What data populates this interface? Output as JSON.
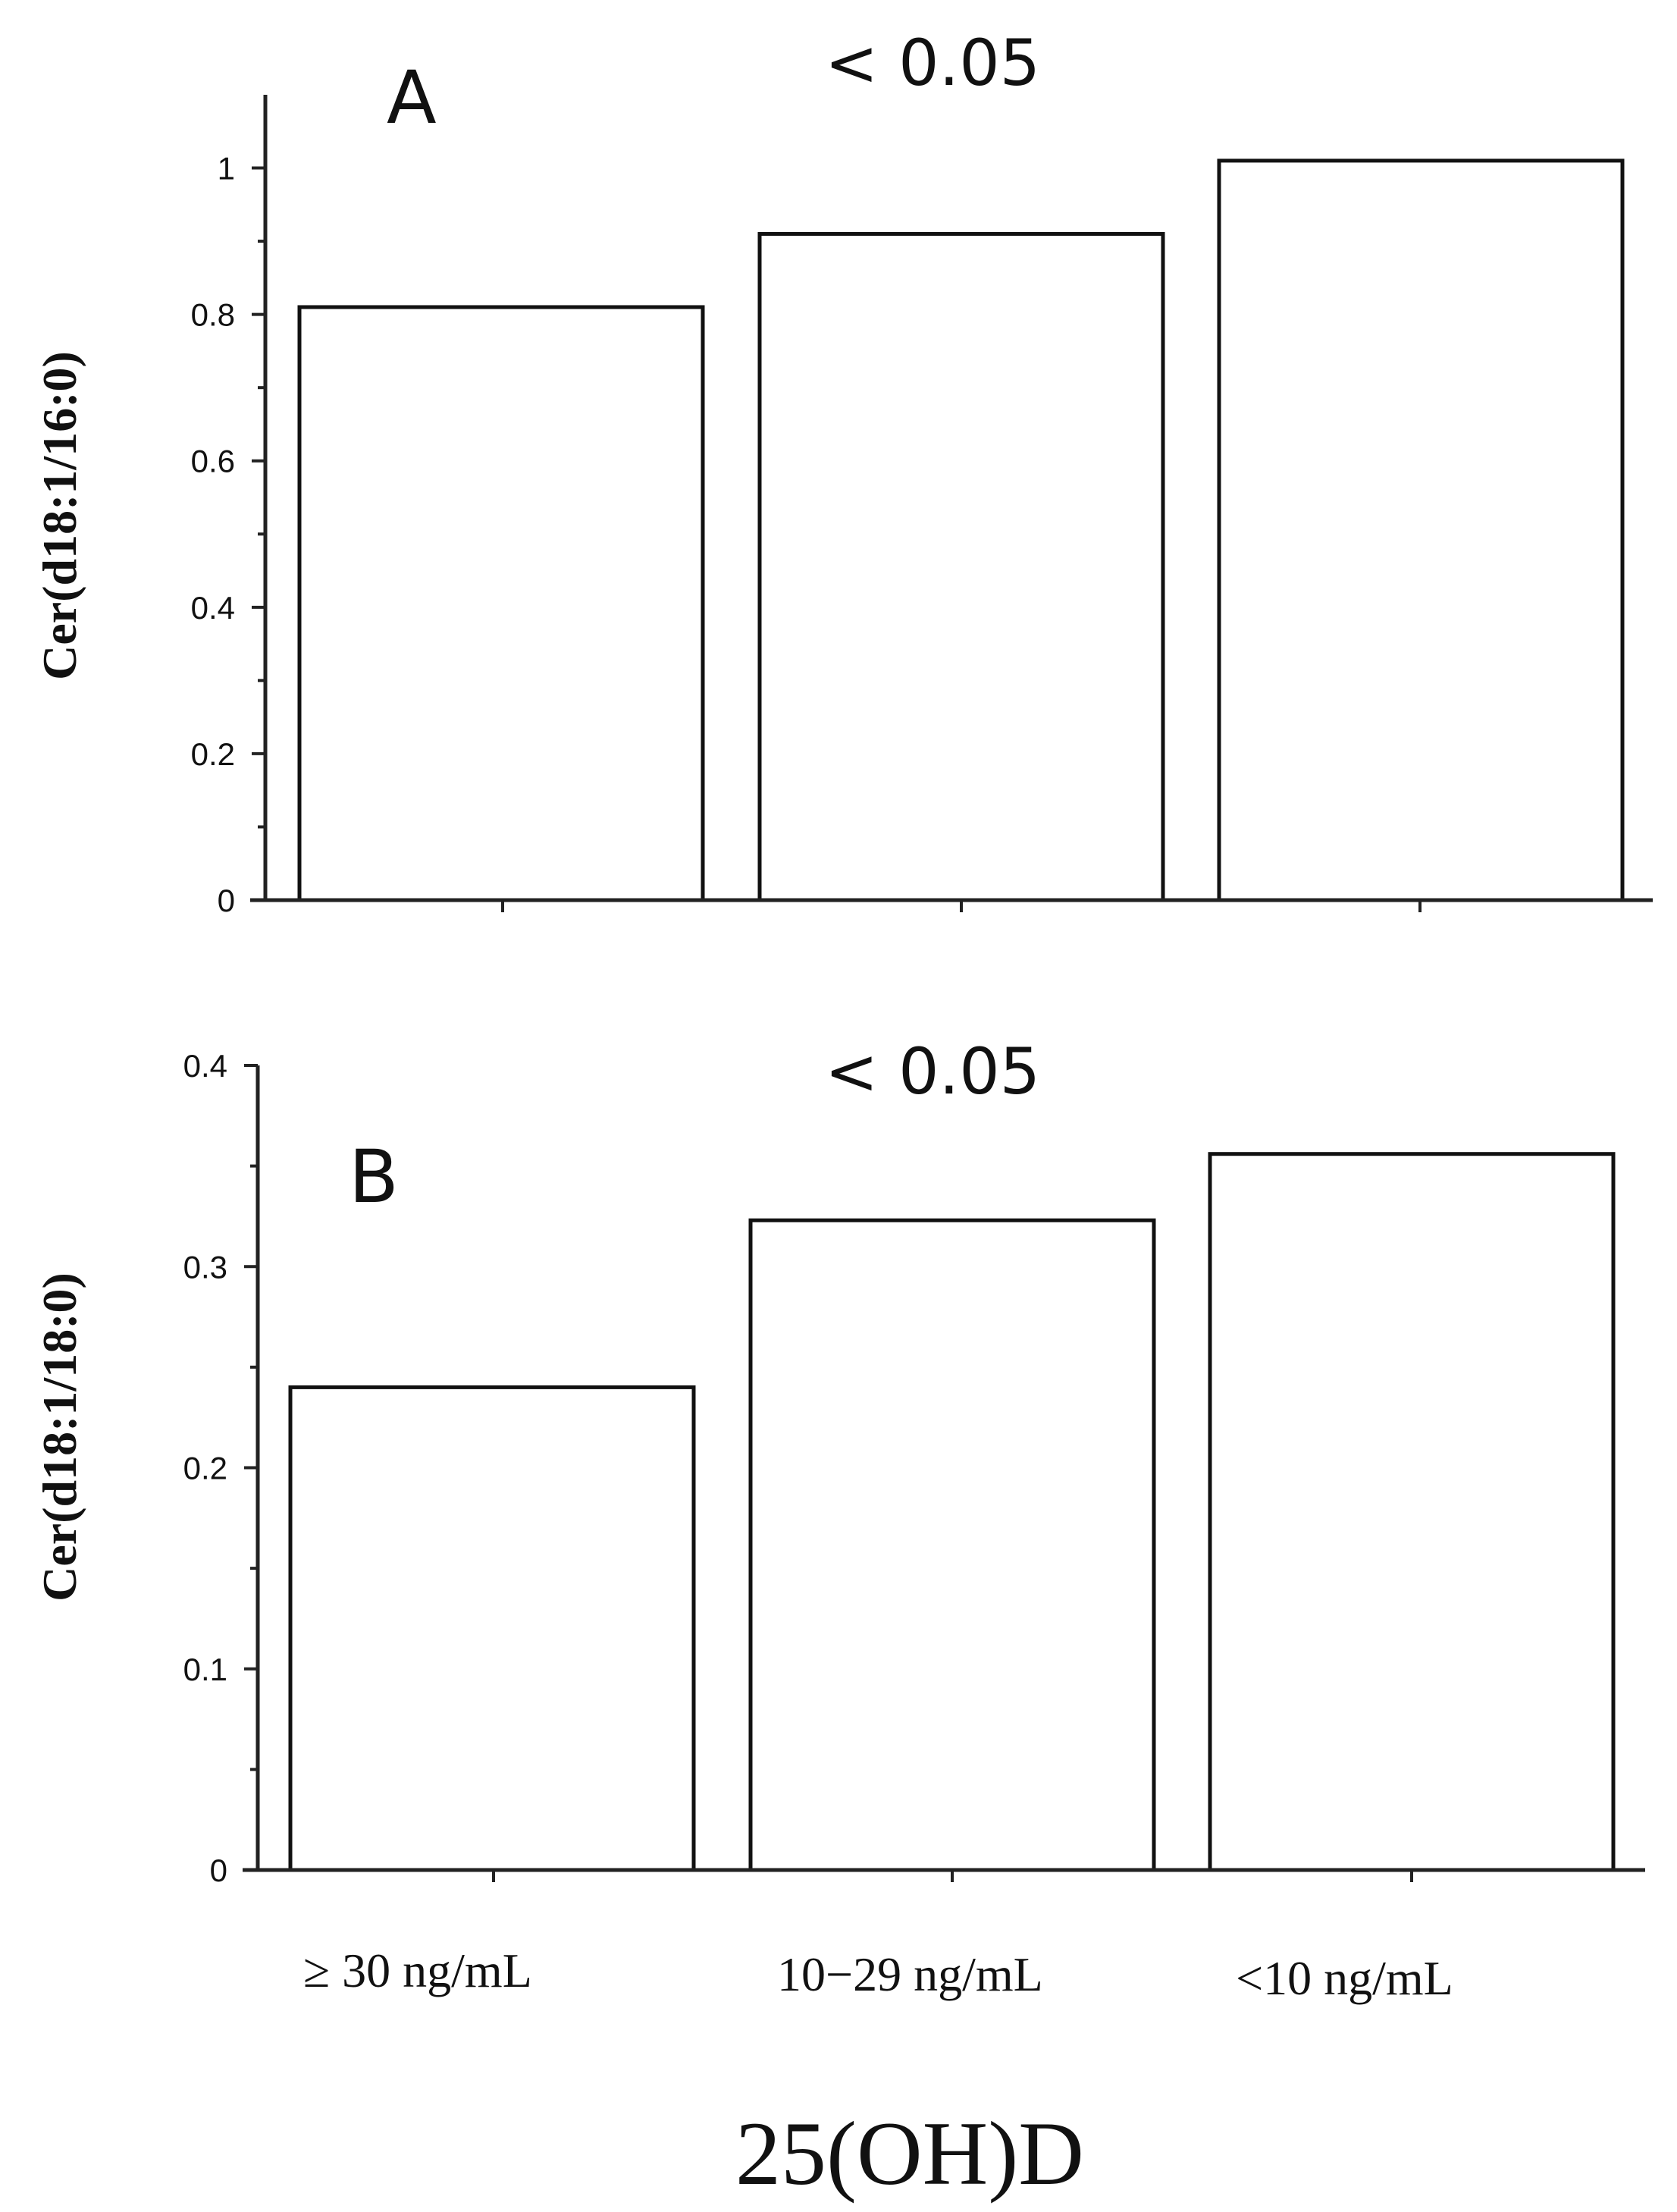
{
  "chart_data": [
    {
      "type": "bar",
      "panel_label": "A",
      "annotation": "< 0.05",
      "ylabel": "Cer(d18:1/16:0)",
      "ylim": [
        0,
        1.1
      ],
      "yticks": [
        0,
        0.2,
        0.4,
        0.6,
        0.8,
        1
      ],
      "categories": [
        "≥ 30 ng/mL",
        "10−29 ng/mL",
        "<10 ng/mL"
      ],
      "values": [
        0.81,
        0.91,
        1.01
      ]
    },
    {
      "type": "bar",
      "panel_label": "B",
      "annotation": "< 0.05",
      "ylabel": "Cer(d18:1/18:0)",
      "ylim": [
        0,
        0.4
      ],
      "yticks": [
        0,
        0.1,
        0.2,
        0.3,
        0.4
      ],
      "categories": [
        "≥ 30 ng/mL",
        "10−29 ng/mL",
        "<10 ng/mL"
      ],
      "values": [
        0.24,
        0.323,
        0.356
      ]
    }
  ],
  "x_axis": {
    "category_labels": [
      "≥ 30 ng/mL",
      "10−29 ng/mL",
      "<10 ng/mL"
    ],
    "title": "25(OH)D"
  }
}
